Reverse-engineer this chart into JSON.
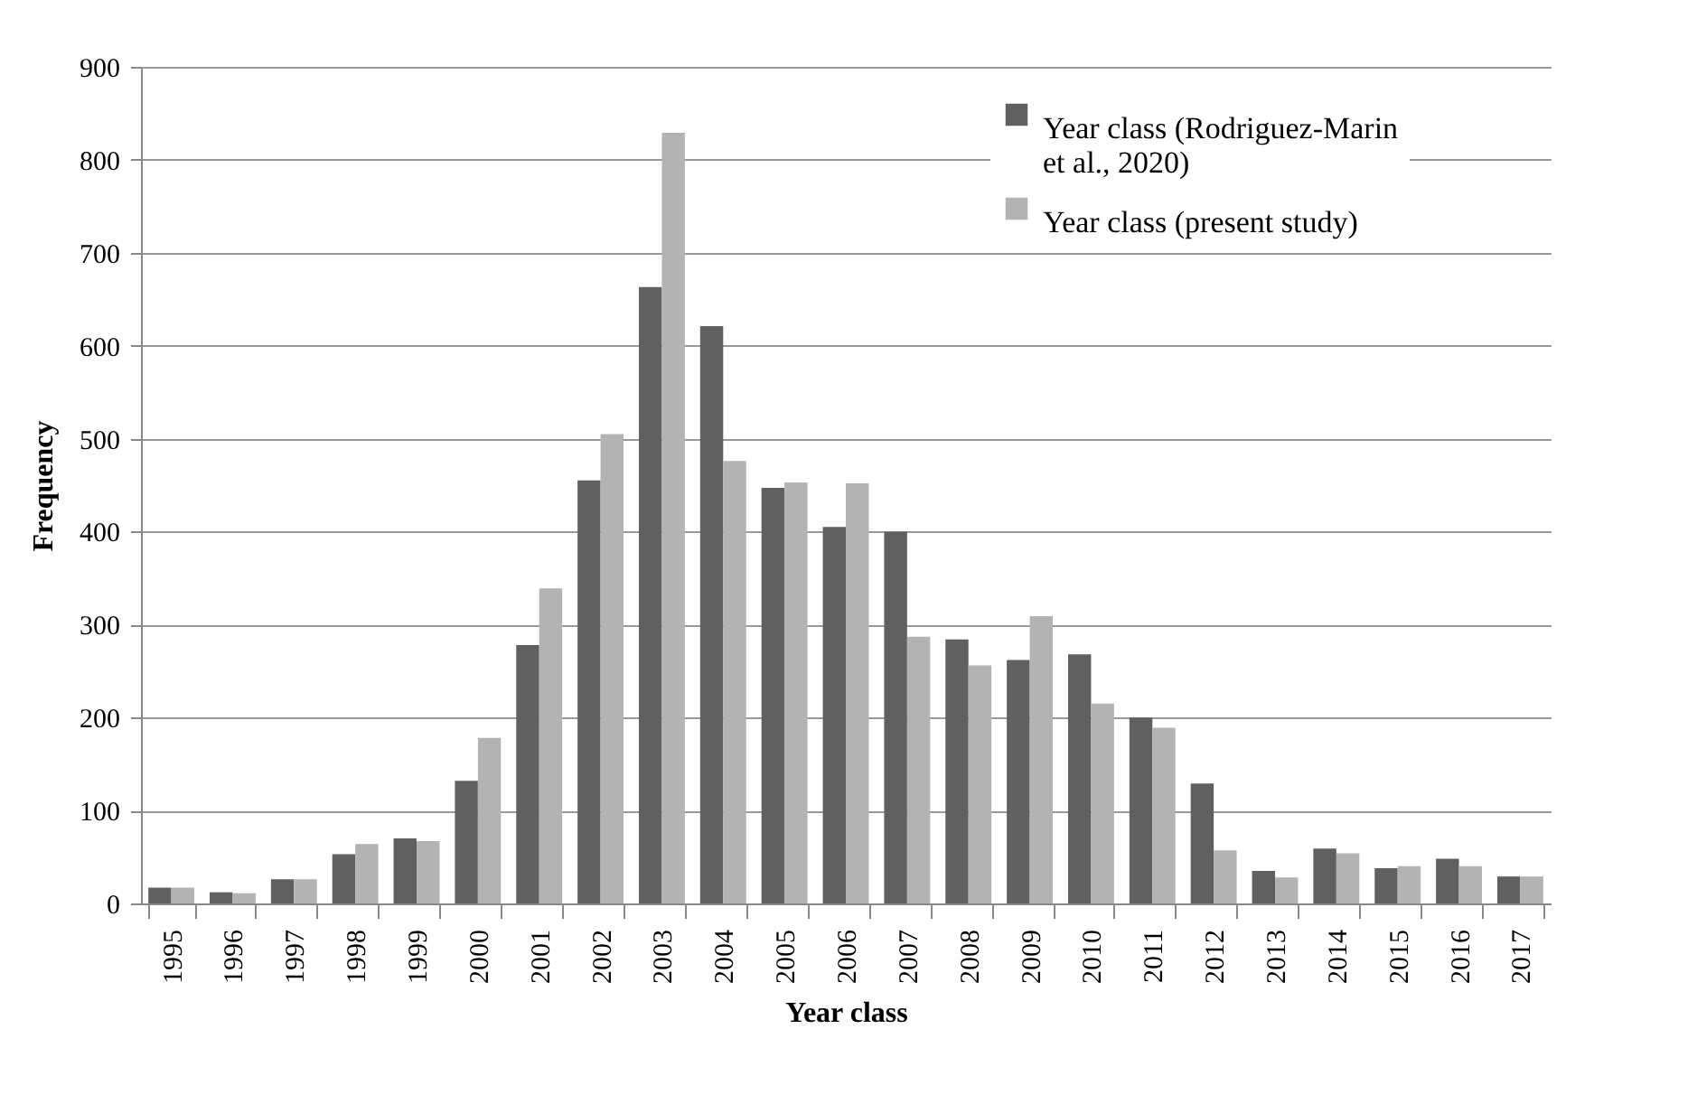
{
  "chart_data": {
    "type": "bar",
    "xlabel": "Year class",
    "ylabel": "Frequency",
    "categories": [
      "1995",
      "1996",
      "1997",
      "1998",
      "1999",
      "2000",
      "2001",
      "2002",
      "2003",
      "2004",
      "2005",
      "2006",
      "2007",
      "2008",
      "2009",
      "2010",
      "2011",
      "2012",
      "2013",
      "2014",
      "2015",
      "2016",
      "2017"
    ],
    "series": [
      {
        "name": "Year class (Rodriguez-Marin et al., 2020)",
        "color": "#606060",
        "values": [
          17,
          12,
          26,
          53,
          70,
          132,
          278,
          455,
          663,
          621,
          447,
          405,
          400,
          284,
          262,
          268,
          200,
          129,
          35,
          59,
          38,
          48,
          29
        ]
      },
      {
        "name": "Year class (present study)",
        "color": "#b3b3b3",
        "values": [
          17,
          11,
          26,
          64,
          67,
          178,
          339,
          505,
          829,
          476,
          453,
          452,
          287,
          256,
          309,
          215,
          189,
          57,
          28,
          54,
          40,
          40,
          29
        ]
      }
    ],
    "ylim": [
      0,
      900
    ],
    "yticks": [
      0,
      100,
      200,
      300,
      400,
      500,
      600,
      700,
      800,
      900
    ],
    "grid": "y",
    "legend": "top right"
  }
}
